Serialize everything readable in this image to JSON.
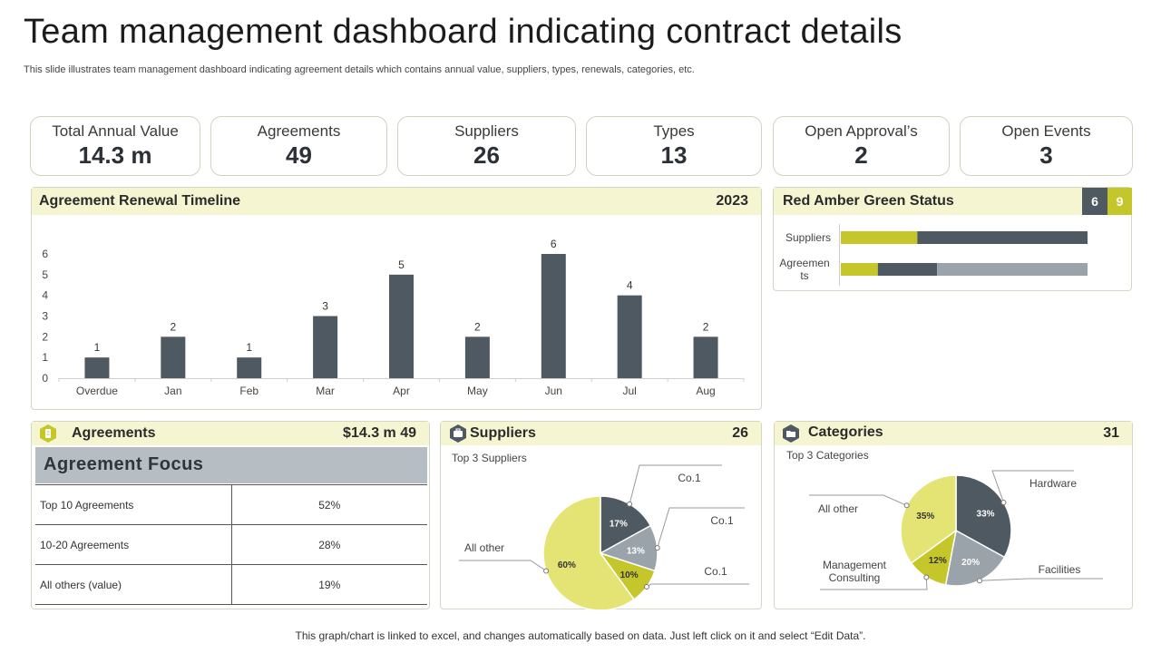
{
  "page": {
    "title": "Team management dashboard indicating contract details",
    "subtitle": "This slide illustrates team management dashboard indicating agreement details which contains annual value, suppliers, types, renewals, categories, etc.",
    "footer": "This graph/chart is linked to excel, and changes automatically based on data. Just left click on it and select “Edit Data”."
  },
  "kpis": [
    {
      "label": "Total Annual Value",
      "value": "14.3 m"
    },
    {
      "label": "Agreements",
      "value": "49"
    },
    {
      "label": "Suppliers",
      "value": "26"
    },
    {
      "label": "Types",
      "value": "13"
    },
    {
      "label": "Open Approval’s",
      "value": "2"
    },
    {
      "label": "Open Events",
      "value": "3"
    }
  ],
  "renewal": {
    "title": "Agreement Renewal Timeline",
    "year": "2023"
  },
  "rag": {
    "title": "Red Amber Green Status",
    "badge_dark": "6",
    "badge_green": "9",
    "rows": [
      {
        "label": "Suppliers",
        "segments": [
          {
            "value": 31,
            "color": "#c5c629"
          },
          {
            "value": 69,
            "color": "#4f5961"
          }
        ]
      },
      {
        "label": "Agreemen ts",
        "segments": [
          {
            "value": 15,
            "color": "#c5c629"
          },
          {
            "value": 24,
            "color": "#4f5961"
          },
          {
            "value": 61,
            "color": "#9aa3a9"
          }
        ]
      }
    ]
  },
  "agreements_panel": {
    "title": "Agreements",
    "value": "$14.3 m 49",
    "focus_title": "Agreement Focus",
    "rows": [
      {
        "name": "Top 10 Agreements",
        "pct": "52%"
      },
      {
        "name": "10-20 Agreements",
        "pct": "28%"
      },
      {
        "name": "All others (value)",
        "pct": "19%"
      }
    ]
  },
  "suppliers_panel": {
    "title": "Suppliers",
    "value": "26",
    "subtitle": "Top 3 Suppliers"
  },
  "categories_panel": {
    "title": "Categories",
    "value": "31",
    "subtitle": "Top 3 Categories"
  },
  "colors": {
    "dark": "#4f5961",
    "grey": "#9aa3a9",
    "olive": "#c5c629",
    "pale": "#e4e474",
    "header": "#f5f5d2"
  },
  "chart_data": [
    {
      "type": "bar",
      "title": "Agreement Renewal Timeline",
      "categories": [
        "Overdue",
        "Jan",
        "Feb",
        "Mar",
        "Apr",
        "May",
        "Jun",
        "Jul",
        "Aug"
      ],
      "values": [
        1,
        2,
        1,
        3,
        5,
        2,
        6,
        4,
        2
      ],
      "ylim": [
        0,
        6
      ],
      "yticks": [
        0,
        1,
        2,
        3,
        4,
        5,
        6
      ],
      "data_labels": true
    },
    {
      "type": "bar",
      "title": "Red Amber Green Status",
      "orientation": "horizontal",
      "stacked": true,
      "categories": [
        "Suppliers",
        "Agreemen ts"
      ],
      "series": [
        {
          "values": [
            31,
            15
          ]
        },
        {
          "values": [
            69,
            24
          ]
        },
        {
          "values": [
            0,
            61
          ]
        }
      ]
    },
    {
      "type": "pie",
      "title": "Top 3 Suppliers",
      "slices": [
        {
          "label": "Co.1",
          "value": 17,
          "text": "17%",
          "color": "#4f5961"
        },
        {
          "label": "Co.1",
          "value": 13,
          "text": "13%",
          "color": "#9aa3a9"
        },
        {
          "label": "Co.1",
          "value": 10,
          "text": "10%",
          "color": "#c5c629"
        },
        {
          "label": "All other",
          "value": 60,
          "text": "60%",
          "color": "#e4e474"
        }
      ]
    },
    {
      "type": "pie",
      "title": "Top 3 Categories",
      "slices": [
        {
          "label": "Hardware",
          "value": 33,
          "text": "33%",
          "color": "#4f5961"
        },
        {
          "label": "Facilities",
          "value": 20,
          "text": "20%",
          "color": "#9aa3a9"
        },
        {
          "label": "Management Consulting",
          "value": 12,
          "text": "12%",
          "color": "#c5c629"
        },
        {
          "label": "All other",
          "value": 35,
          "text": "35%",
          "color": "#e4e474"
        }
      ]
    }
  ]
}
